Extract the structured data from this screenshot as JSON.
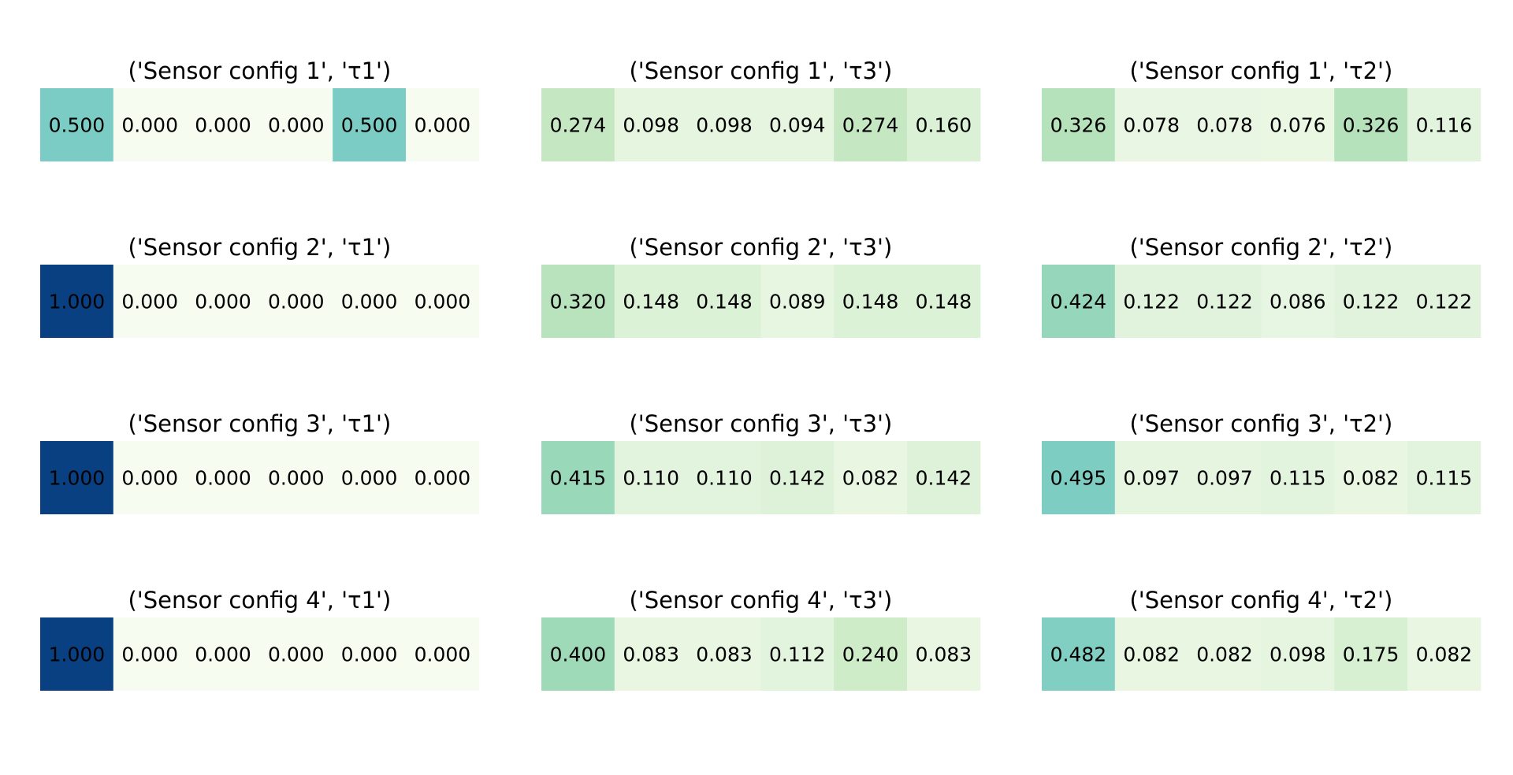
{
  "chart_data": {
    "type": "heatmap",
    "colormap": "GnBu",
    "vmin": 0,
    "vmax": 1,
    "grid": false,
    "panels": [
      {
        "title": "('Sensor config 1', 'τ1')",
        "values": [
          0.5,
          0.0,
          0.0,
          0.0,
          0.5,
          0.0
        ],
        "labels": [
          "0.500",
          "0.000",
          "0.000",
          "0.000",
          "0.500",
          "0.000"
        ]
      },
      {
        "title": "('Sensor config 1', 'τ3')",
        "values": [
          0.274,
          0.098,
          0.098,
          0.094,
          0.274,
          0.16
        ],
        "labels": [
          "0.274",
          "0.098",
          "0.098",
          "0.094",
          "0.274",
          "0.160"
        ]
      },
      {
        "title": "('Sensor config 1', 'τ2')",
        "values": [
          0.326,
          0.078,
          0.078,
          0.076,
          0.326,
          0.116
        ],
        "labels": [
          "0.326",
          "0.078",
          "0.078",
          "0.076",
          "0.326",
          "0.116"
        ]
      },
      {
        "title": "('Sensor config 2', 'τ1')",
        "values": [
          1.0,
          0.0,
          0.0,
          0.0,
          0.0,
          0.0
        ],
        "labels": [
          "1.000",
          "0.000",
          "0.000",
          "0.000",
          "0.000",
          "0.000"
        ]
      },
      {
        "title": "('Sensor config 2', 'τ3')",
        "values": [
          0.32,
          0.148,
          0.148,
          0.089,
          0.148,
          0.148
        ],
        "labels": [
          "0.320",
          "0.148",
          "0.148",
          "0.089",
          "0.148",
          "0.148"
        ]
      },
      {
        "title": "('Sensor config 2', 'τ2')",
        "values": [
          0.424,
          0.122,
          0.122,
          0.086,
          0.122,
          0.122
        ],
        "labels": [
          "0.424",
          "0.122",
          "0.122",
          "0.086",
          "0.122",
          "0.122"
        ]
      },
      {
        "title": "('Sensor config 3', 'τ1')",
        "values": [
          1.0,
          0.0,
          0.0,
          0.0,
          0.0,
          0.0
        ],
        "labels": [
          "1.000",
          "0.000",
          "0.000",
          "0.000",
          "0.000",
          "0.000"
        ]
      },
      {
        "title": "('Sensor config 3', 'τ3')",
        "values": [
          0.415,
          0.11,
          0.11,
          0.142,
          0.082,
          0.142
        ],
        "labels": [
          "0.415",
          "0.110",
          "0.110",
          "0.142",
          "0.082",
          "0.142"
        ]
      },
      {
        "title": "('Sensor config 3', 'τ2')",
        "values": [
          0.495,
          0.097,
          0.097,
          0.115,
          0.082,
          0.115
        ],
        "labels": [
          "0.495",
          "0.097",
          "0.097",
          "0.115",
          "0.082",
          "0.115"
        ]
      },
      {
        "title": "('Sensor config 4', 'τ1')",
        "values": [
          1.0,
          0.0,
          0.0,
          0.0,
          0.0,
          0.0
        ],
        "labels": [
          "1.000",
          "0.000",
          "0.000",
          "0.000",
          "0.000",
          "0.000"
        ]
      },
      {
        "title": "('Sensor config 4', 'τ3')",
        "values": [
          0.4,
          0.083,
          0.083,
          0.112,
          0.24,
          0.083
        ],
        "labels": [
          "0.400",
          "0.083",
          "0.083",
          "0.112",
          "0.240",
          "0.083"
        ]
      },
      {
        "title": "('Sensor config 4', 'τ2')",
        "values": [
          0.482,
          0.082,
          0.082,
          0.098,
          0.175,
          0.082
        ],
        "labels": [
          "0.482",
          "0.082",
          "0.082",
          "0.098",
          "0.175",
          "0.082"
        ]
      }
    ]
  }
}
